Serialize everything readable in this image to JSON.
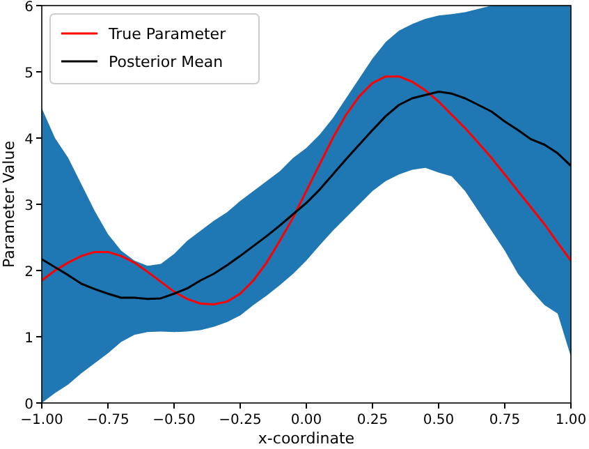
{
  "chart_data": {
    "type": "line",
    "xlabel": "x-coordinate",
    "ylabel": "Parameter Value",
    "x": [
      -1.0,
      -0.95,
      -0.9,
      -0.85,
      -0.8,
      -0.75,
      -0.7,
      -0.65,
      -0.6,
      -0.55,
      -0.5,
      -0.45,
      -0.4,
      -0.35,
      -0.3,
      -0.25,
      -0.2,
      -0.15,
      -0.1,
      -0.05,
      0,
      0.05,
      0.1,
      0.15,
      0.2,
      0.25,
      0.3,
      0.35,
      0.4,
      0.45,
      0.5,
      0.55,
      0.6,
      0.65,
      0.7,
      0.75,
      0.8,
      0.85,
      0.9,
      0.95,
      1.0
    ],
    "series": [
      {
        "name": "True Parameter",
        "color": "#ff0000",
        "values": [
          1.85,
          2.0,
          2.12,
          2.22,
          2.28,
          2.28,
          2.22,
          2.12,
          1.98,
          1.83,
          1.68,
          1.57,
          1.5,
          1.49,
          1.53,
          1.65,
          1.85,
          2.12,
          2.45,
          2.8,
          3.2,
          3.6,
          4.0,
          4.35,
          4.63,
          4.83,
          4.93,
          4.93,
          4.85,
          4.72,
          4.55,
          4.35,
          4.15,
          3.93,
          3.7,
          3.45,
          3.2,
          2.95,
          2.7,
          2.42,
          2.15
        ]
      },
      {
        "name": "Posterior Mean",
        "color": "#000000",
        "values": [
          2.17,
          2.05,
          1.93,
          1.8,
          1.72,
          1.65,
          1.59,
          1.59,
          1.57,
          1.58,
          1.65,
          1.73,
          1.85,
          1.95,
          2.08,
          2.22,
          2.37,
          2.52,
          2.68,
          2.85,
          3.02,
          3.22,
          3.45,
          3.68,
          3.9,
          4.12,
          4.33,
          4.5,
          4.6,
          4.65,
          4.7,
          4.67,
          4.6,
          4.5,
          4.4,
          4.25,
          4.12,
          3.98,
          3.9,
          3.77,
          3.58
        ],
        "lower": [
          0.0,
          0.15,
          0.28,
          0.45,
          0.6,
          0.75,
          0.92,
          1.03,
          1.07,
          1.08,
          1.07,
          1.08,
          1.1,
          1.15,
          1.22,
          1.32,
          1.48,
          1.62,
          1.78,
          1.95,
          2.15,
          2.38,
          2.6,
          2.8,
          3.0,
          3.2,
          3.35,
          3.45,
          3.52,
          3.55,
          3.48,
          3.42,
          3.2,
          2.9,
          2.6,
          2.3,
          1.95,
          1.7,
          1.48,
          1.35,
          0.7
        ],
        "upper": [
          4.45,
          4.0,
          3.7,
          3.3,
          2.9,
          2.55,
          2.3,
          2.15,
          2.07,
          2.1,
          2.25,
          2.45,
          2.6,
          2.75,
          2.88,
          3.05,
          3.2,
          3.35,
          3.5,
          3.7,
          3.85,
          4.05,
          4.3,
          4.6,
          4.9,
          5.2,
          5.45,
          5.62,
          5.72,
          5.8,
          5.85,
          5.87,
          5.9,
          5.95,
          6.0,
          6.0,
          6.0,
          6.0,
          6.0,
          6.0,
          6.0
        ]
      }
    ],
    "xlim": [
      -1.0,
      1.0
    ],
    "xticks": [
      {
        "value": -1,
        "label": "−1.00"
      },
      {
        "value": -0.75,
        "label": "−0.75"
      },
      {
        "value": -0.5,
        "label": "−0.50"
      },
      {
        "value": -0.25,
        "label": "−0.25"
      },
      {
        "value": 0,
        "label": "0.00"
      },
      {
        "value": 0.25,
        "label": "0.25"
      },
      {
        "value": 0.5,
        "label": "0.50"
      },
      {
        "value": 0.75,
        "label": "0.75"
      },
      {
        "value": 1,
        "label": "1.00"
      }
    ],
    "ylim": [
      0,
      6
    ],
    "yticks": [
      0,
      1,
      2,
      3,
      4,
      5,
      6
    ],
    "grid": false,
    "legend": "top left",
    "line_style": "solid",
    "marker": "none"
  }
}
